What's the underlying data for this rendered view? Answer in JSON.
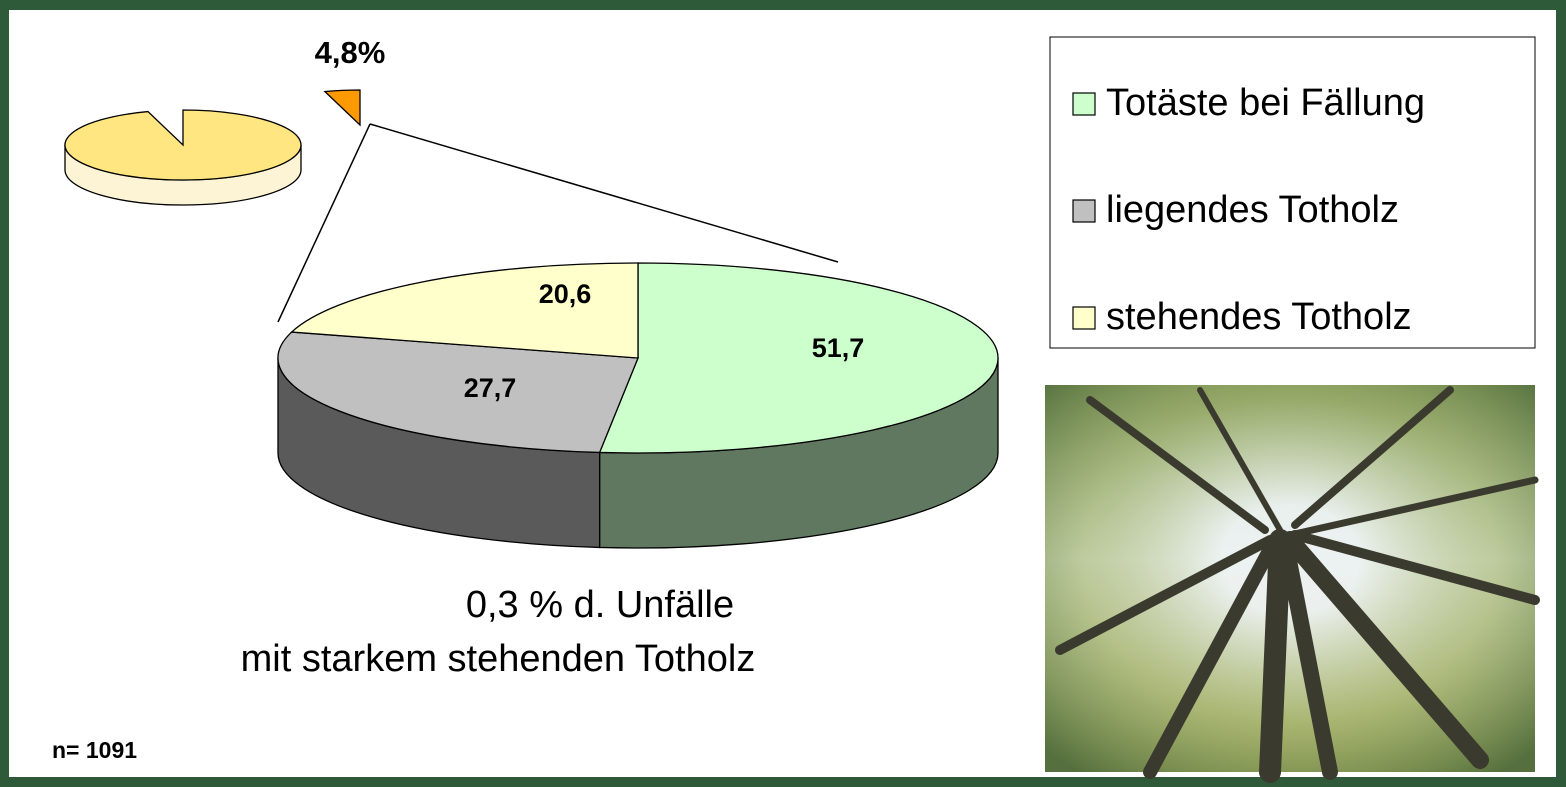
{
  "chart_data": [
    {
      "type": "pie3d",
      "categories": [
        "Totäste bei Fällung",
        "liegendes Totholz",
        "stehendes Totholz"
      ],
      "values": [
        51.7,
        27.7,
        20.6
      ],
      "value_labels": [
        "51,7",
        "27,7",
        "20,6"
      ],
      "colors": [
        "#ccffcc",
        "#c0c0c0",
        "#ffffcc"
      ],
      "legend": "right",
      "annotations": [
        "0,3 % d. Unfälle",
        "mit starkem stehenden Totholz",
        "n= 1091"
      ]
    },
    {
      "type": "pie3d",
      "values": [
        95.2,
        4.8
      ],
      "value_labels": [
        null,
        "4,8%"
      ],
      "colors": [
        "#ffe680",
        "#ff9900"
      ]
    }
  ]
}
